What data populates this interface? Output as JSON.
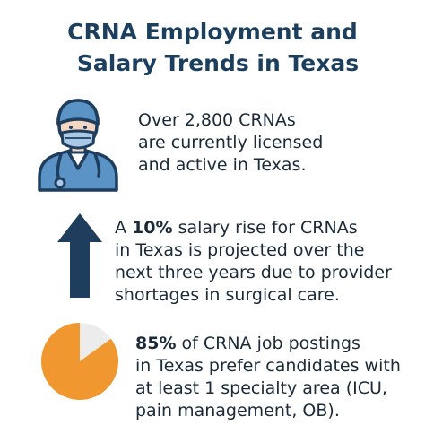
{
  "title": {
    "line1": "CRNA Employment and",
    "line2": "Salary Trends in Texas"
  },
  "colors": {
    "title": "#1d3f5e",
    "navy": "#1f3d5c",
    "scrub_blue": "#5b93c7",
    "mask_blue": "#a9c9e6",
    "orange": "#f0982f",
    "pie_light": "#ececec"
  },
  "facts": [
    {
      "icon": "nurse-icon",
      "lines": [
        "Over 2,800 CRNAs",
        "are currently licensed",
        "and active in Texas."
      ]
    },
    {
      "icon": "up-arrow-icon",
      "highlight": "10%",
      "lines": [
        "A ",
        " salary rise for CRNAs",
        "in Texas is projected over the",
        "next three years due to provider",
        "shortages in surgical care."
      ]
    },
    {
      "icon": "pie-chart-icon",
      "highlight": "85%",
      "pie_value": 0.85,
      "lines": [
        " of CRNA job postings",
        "in Texas prefer candidates with",
        "at least 1 specialty area (ICU,",
        "pain management, OB)."
      ]
    }
  ]
}
